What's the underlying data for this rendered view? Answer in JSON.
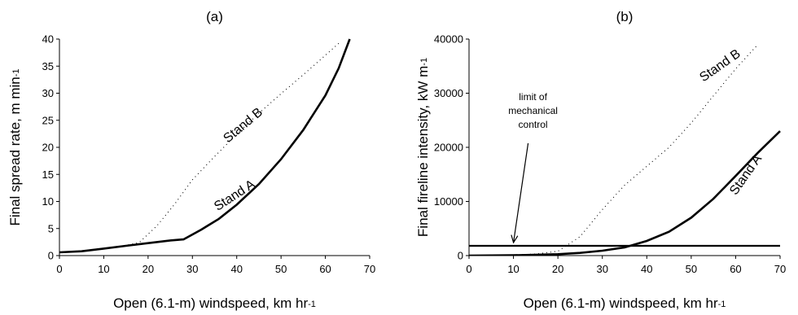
{
  "chart_data": [
    {
      "type": "line",
      "panel_label": "(a)",
      "xlabel": "Open (6.1-m) windspeed, km hr",
      "xlabel_sub": "-1",
      "ylabel": "Final spread rate, m min",
      "ylabel_sub": "-1",
      "xlim": [
        0,
        70
      ],
      "ylim": [
        0,
        40
      ],
      "xticks": [
        0,
        10,
        20,
        30,
        40,
        50,
        60,
        70
      ],
      "yticks": [
        0,
        5,
        10,
        15,
        20,
        25,
        30,
        35,
        40
      ],
      "grid": false,
      "series": [
        {
          "name": "Stand A",
          "style": "solid-thick",
          "x": [
            0,
            5,
            10,
            15,
            20,
            25,
            28,
            32,
            36,
            40,
            45,
            50,
            55,
            60,
            63,
            65.5
          ],
          "y": [
            0.6,
            0.8,
            1.3,
            1.8,
            2.3,
            2.8,
            3.0,
            4.8,
            6.8,
            9.4,
            13.2,
            17.8,
            23.2,
            29.6,
            34.6,
            40
          ]
        },
        {
          "name": "Stand B",
          "style": "dotted",
          "x": [
            0,
            5,
            10,
            15,
            18,
            22,
            26,
            30,
            35,
            40,
            45,
            50,
            55,
            60,
            63
          ],
          "y": [
            0.6,
            0.9,
            1.3,
            1.9,
            2.4,
            5.5,
            9.5,
            14.0,
            18.3,
            22.4,
            26.3,
            29.9,
            33.4,
            37.0,
            39.2
          ]
        }
      ],
      "series_labels": [
        {
          "text": "Stand A",
          "x": 40,
          "y": 10.5,
          "angle": -33
        },
        {
          "text": "Stand B",
          "x": 42,
          "y": 23.5,
          "angle": -40
        }
      ]
    },
    {
      "type": "line",
      "panel_label": "(b)",
      "xlabel": "Open (6.1-m) windspeed, km hr",
      "xlabel_sub": "-1",
      "ylabel": "Final fireline intensity, kW m",
      "ylabel_sub": "-1",
      "xlim": [
        0,
        70
      ],
      "ylim": [
        0,
        40000
      ],
      "xticks": [
        0,
        10,
        20,
        30,
        40,
        50,
        60,
        70
      ],
      "yticks": [
        0,
        10000,
        20000,
        30000,
        40000
      ],
      "grid": false,
      "series": [
        {
          "name": "Stand A",
          "style": "solid-thick",
          "x": [
            0,
            10,
            20,
            25,
            30,
            35,
            40,
            45,
            50,
            55,
            60,
            65,
            70
          ],
          "y": [
            0,
            60,
            250,
            500,
            900,
            1500,
            2700,
            4400,
            7000,
            10500,
            14700,
            19000,
            23000
          ]
        },
        {
          "name": "Stand B",
          "style": "dotted",
          "x": [
            0,
            10,
            15,
            20,
            25,
            30,
            35,
            40,
            45,
            50,
            55,
            60,
            65
          ],
          "y": [
            0,
            100,
            300,
            800,
            3500,
            8500,
            13000,
            16500,
            20000,
            24500,
            29500,
            34500,
            39000
          ]
        }
      ],
      "reference_line": {
        "y": 1800,
        "label": "limit of mechanical control"
      },
      "annotation": {
        "lines": [
          "limit of",
          "mechanical",
          "control"
        ],
        "arrow_x": 10,
        "arrow_y": 1800
      },
      "series_labels": [
        {
          "text": "Stand A",
          "x": 63,
          "y": 14500,
          "angle": -55
        },
        {
          "text": "Stand B",
          "x": 57,
          "y": 34500,
          "angle": -35
        }
      ]
    }
  ]
}
